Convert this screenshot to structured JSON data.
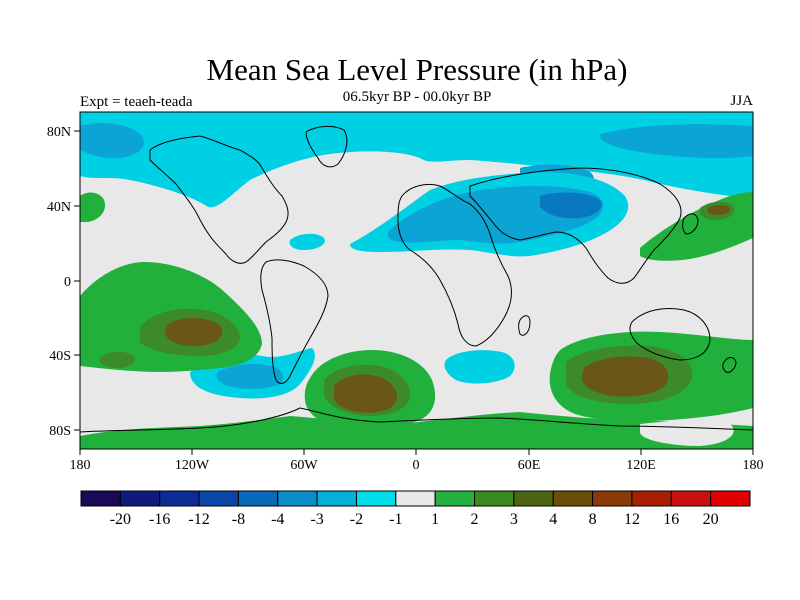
{
  "header": {
    "title": "Mean Sea Level Pressure (in hPa)",
    "subtitle": "06.5kyr BP - 00.0kyr BP",
    "experiment": "Expt = teaeh-teada",
    "season": "JJA"
  },
  "map": {
    "x_ticks": [
      "180",
      "120W",
      "60W",
      "0",
      "60E",
      "120E",
      "180"
    ],
    "y_ticks": [
      "80N",
      "40N",
      "0",
      "40S",
      "80S"
    ]
  },
  "colorbar": {
    "labels": [
      "-20",
      "-16",
      "-12",
      "-8",
      "-4",
      "-3",
      "-2",
      "-1",
      "1",
      "2",
      "3",
      "4",
      "8",
      "12",
      "16",
      "20"
    ],
    "colors": [
      "#1a0a55",
      "#0f1a7a",
      "#0c2d94",
      "#0a45a8",
      "#0b6ab8",
      "#0b8ec8",
      "#08b0d8",
      "#00dce8",
      "#e8e8e8",
      "#26b040",
      "#3a8a22",
      "#4c6414",
      "#6a4e0a",
      "#8a3a08",
      "#a82004",
      "#c81010",
      "#e00000"
    ]
  },
  "colors": {
    "land_coast": "#000000",
    "neutral": "#e8e8e8",
    "green_light": "#22b03c",
    "green_mid": "#3c8a2c",
    "brown": "#6a5618",
    "cyan": "#00d0e4",
    "blue_mid": "#0ba4d4",
    "blue_dark": "#0a78c0"
  }
}
